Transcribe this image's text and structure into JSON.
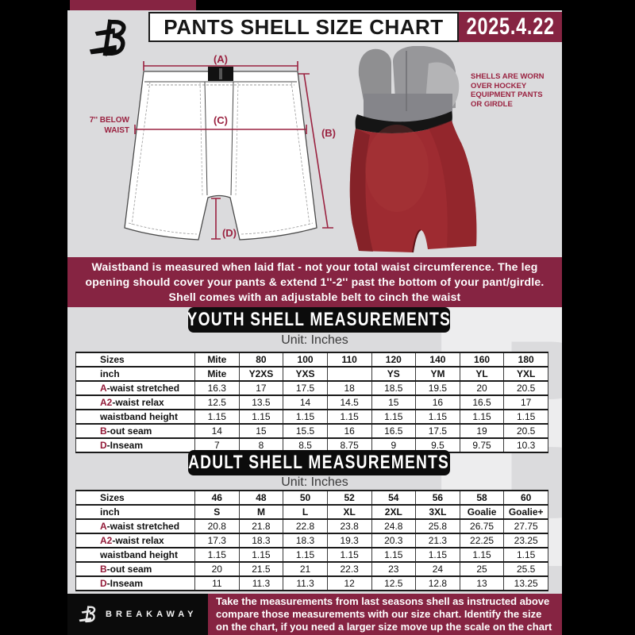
{
  "header": {
    "title": "PANTS SHELL SIZE CHART",
    "date": "2025.4.22"
  },
  "diagram": {
    "labels": {
      "a": "(A)",
      "b": "(B)",
      "c": "(C)",
      "d": "(D)"
    },
    "waist_note": "7'' BELOW\nWAIST",
    "photo_caption": "SHELLS ARE WORN\nOVER HOCKEY\nEQUIPMENT PANTS\nOR GIRDLE"
  },
  "notice_banner": "Waistband is measured when laid flat - not your total waist circumference. The leg\nopening should cover your pants & extend 1''-2'' past the bottom of your pant/girdle.\nShell comes with an adjustable belt to cinch the waist",
  "youth": {
    "heading": "YOUTH SHELL MEASUREMENTS",
    "unit": "Unit: Inches",
    "columns": [
      "Sizes",
      "Mite",
      "80",
      "100",
      "110",
      "120",
      "140",
      "160",
      "180"
    ],
    "rows": [
      {
        "prefix": "",
        "label": "inch",
        "values": [
          "Mite",
          "Y2XS",
          "YXS",
          "",
          "YS",
          "YM",
          "YL",
          "YXL"
        ]
      },
      {
        "prefix": "A",
        "label": "-waist stretched",
        "values": [
          "16.3",
          "17",
          "17.5",
          "18",
          "18.5",
          "19.5",
          "20",
          "20.5"
        ]
      },
      {
        "prefix": "A2",
        "label": "-waist relax",
        "values": [
          "12.5",
          "13.5",
          "14",
          "14.5",
          "15",
          "16",
          "16.5",
          "17"
        ]
      },
      {
        "prefix": "",
        "label": "waistband height",
        "values": [
          "1.15",
          "1.15",
          "1.15",
          "1.15",
          "1.15",
          "1.15",
          "1.15",
          "1.15"
        ]
      },
      {
        "prefix": "B",
        "label": "-out seam",
        "values": [
          "14",
          "15",
          "15.5",
          "16",
          "16.5",
          "17.5",
          "19",
          "20.5"
        ]
      },
      {
        "prefix": "D",
        "label": "-Inseam",
        "values": [
          "7",
          "8",
          "8.5",
          "8.75",
          "9",
          "9.5",
          "9.75",
          "10.3"
        ]
      }
    ]
  },
  "adult": {
    "heading": "ADULT SHELL MEASUREMENTS",
    "unit": "Unit: Inches",
    "columns": [
      "Sizes",
      "46",
      "48",
      "50",
      "52",
      "54",
      "56",
      "58",
      "60"
    ],
    "rows": [
      {
        "prefix": "",
        "label": "inch",
        "values": [
          "S",
          "M",
          "L",
          "XL",
          "2XL",
          "3XL",
          "Goalie",
          "Goalie+"
        ]
      },
      {
        "prefix": "A",
        "label": "-waist stretched",
        "values": [
          "20.8",
          "21.8",
          "22.8",
          "23.8",
          "24.8",
          "25.8",
          "26.75",
          "27.75"
        ]
      },
      {
        "prefix": "A2",
        "label": "-waist relax",
        "values": [
          "17.3",
          "18.3",
          "18.3",
          "19.3",
          "20.3",
          "21.3",
          "22.25",
          "23.25"
        ]
      },
      {
        "prefix": "",
        "label": "waistband height",
        "values": [
          "1.15",
          "1.15",
          "1.15",
          "1.15",
          "1.15",
          "1.15",
          "1.15",
          "1.15"
        ]
      },
      {
        "prefix": "B",
        "label": "-out seam",
        "values": [
          "20",
          "21.5",
          "21",
          "22.3",
          "23",
          "24",
          "25",
          "25.5"
        ]
      },
      {
        "prefix": "D",
        "label": "-Inseam",
        "values": [
          "11",
          "11.3",
          "11.3",
          "12",
          "12.5",
          "12.8",
          "13",
          "13.25"
        ]
      }
    ]
  },
  "footer": {
    "brand": "BREAKAWAY",
    "text": "Take the measurements from last seasons shell as instructed above\ncompare those measurements  with our size chart. Identify the size\non the chart, if you need a larger size move up the scale on the chart"
  },
  "watermark": "B",
  "colors": {
    "maroon": "#862442",
    "background_gray": "#dbdbdd",
    "banner_black": "#0c0c0c",
    "table_letter_maroon": "#921a38",
    "diagram_line": "#9a2240",
    "shell_red": "#9e2b31"
  }
}
